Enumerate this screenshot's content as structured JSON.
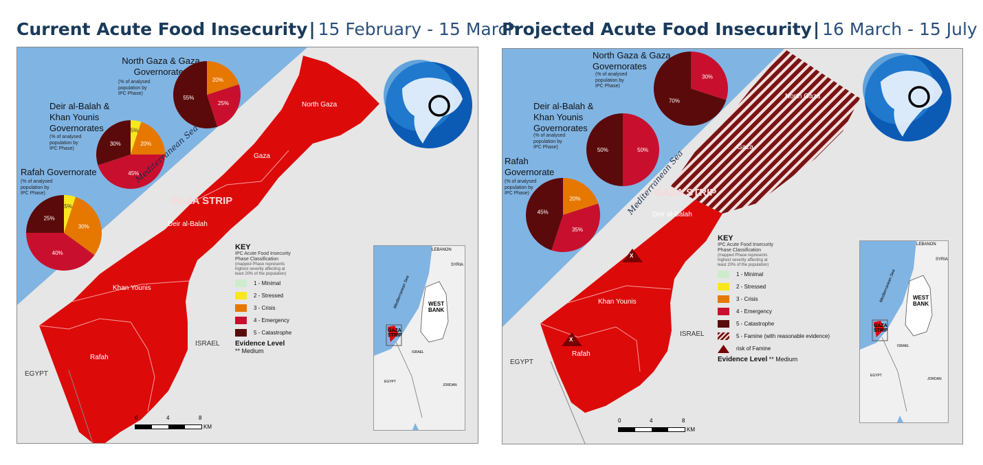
{
  "left": {
    "title_bold": "Current Acute Food Insecurity",
    "title_dates": "15 February - 15 March",
    "pies": [
      {
        "title": "North Gaza & Gaza\nGovernorates",
        "subtitle": "(% of analysed\npopulation by\nIPC Phase)",
        "slices": [
          {
            "phase": 3,
            "pct": 20,
            "label": "20%"
          },
          {
            "phase": 4,
            "pct": 25,
            "label": "25%"
          },
          {
            "phase": 5,
            "pct": 55,
            "label": "55%"
          }
        ]
      },
      {
        "title": "Deir al-Balah &\nKhan Younis\nGovernorates",
        "subtitle": "(% of analysed\npopulation by\nIPC Phase)",
        "slices": [
          {
            "phase": 2,
            "pct": 5,
            "label": "5%"
          },
          {
            "phase": 3,
            "pct": 20,
            "label": "20%"
          },
          {
            "phase": 4,
            "pct": 45,
            "label": "45%"
          },
          {
            "phase": 5,
            "pct": 30,
            "label": "30%"
          }
        ]
      },
      {
        "title": "Rafah  Governorate",
        "subtitle": "(% of analysed\npopulation by\nIPC Phase)",
        "slices": [
          {
            "phase": 2,
            "pct": 5,
            "label": "5%"
          },
          {
            "phase": 3,
            "pct": 30,
            "label": "30%"
          },
          {
            "phase": 4,
            "pct": 40,
            "label": "40%"
          },
          {
            "phase": 5,
            "pct": 25,
            "label": "25%"
          }
        ]
      }
    ],
    "places": {
      "north_gaza": "North Gaza",
      "gaza": "Gaza",
      "gaza_strip": "GAZA STRIP",
      "deir": "Deir al-Balah",
      "khan": "Khan Younis",
      "rafah": "Rafah",
      "israel": "ISRAEL",
      "egypt": "EGYPT",
      "sea": "Mediterranean Sea"
    },
    "key": {
      "title": "KEY",
      "subtitle": "IPC Acute Food Insecurity\nPhase Classification",
      "note": "(mapped Phase represents\nhighest severity affecting at\nleast 20% of the population)",
      "items": [
        {
          "label": "1 - Minimal",
          "color": "#cdeccc"
        },
        {
          "label": "2 - Stressed",
          "color": "#fae61e"
        },
        {
          "label": "3 - Crisis",
          "color": "#e67800"
        },
        {
          "label": "4 - Emergency",
          "color": "#c8102e"
        },
        {
          "label": "5 - Catastrophe",
          "color": "#5a0a0a"
        }
      ],
      "evidence_title": "Evidence Level",
      "evidence_value": "** Medium"
    },
    "scale": {
      "ticks": [
        "0",
        "4",
        "8"
      ],
      "unit": "KM"
    },
    "inset": {
      "lebanon": "LEBANON",
      "syria": "SYRIA",
      "sea": "Mediterranean Sea",
      "west_bank": "WEST\nBANK",
      "gaza_strip": "GAZA\nSTRIP",
      "israel": "ISRAEL",
      "egypt": "EGYPT",
      "jordan": "JORDAN"
    }
  },
  "right": {
    "title_bold": "Projected Acute Food Insecurity",
    "title_dates": "16 March - 15 July",
    "pies": [
      {
        "title": "North Gaza & Gaza\nGovernorates",
        "subtitle": "(% of analysed\npopulation by\nIPC Phase)",
        "slices": [
          {
            "phase": 4,
            "pct": 30,
            "label": "30%"
          },
          {
            "phase": 5,
            "pct": 70,
            "label": "70%"
          }
        ]
      },
      {
        "title": "Deir al-Balah &\nKhan Younis\nGovernorates",
        "subtitle": "(% of analysed\npopulation by\nIPC Phase)",
        "slices": [
          {
            "phase": 4,
            "pct": 50,
            "label": "50%"
          },
          {
            "phase": 5,
            "pct": 50,
            "label": "50%"
          }
        ]
      },
      {
        "title": "Rafah\nGovernorate",
        "subtitle": "(% of analysed\npopulation by\nIPC Phase)",
        "slices": [
          {
            "phase": 3,
            "pct": 20,
            "label": "20%"
          },
          {
            "phase": 4,
            "pct": 35,
            "label": "35%"
          },
          {
            "phase": 5,
            "pct": 45,
            "label": "45%"
          }
        ]
      }
    ],
    "places": {
      "north_gaza": "North Gaza",
      "gaza": "Gaza",
      "gaza_strip": "GAZA STRIP",
      "deir": "Deir al-Balah",
      "khan": "Khan Younis",
      "rafah": "Rafah",
      "israel": "ISRAEL",
      "egypt": "EGYPT",
      "sea": "Mediterranean Sea",
      "risk_mark": "X"
    },
    "key": {
      "title": "KEY",
      "subtitle": "IPC Acute Food Insecurity\nPhase Classification",
      "note": "(mapped Phase represents\nhighest severity affecting at\nleast 20% of the population)",
      "items": [
        {
          "label": "1 - Minimal",
          "color": "#cdeccc"
        },
        {
          "label": "2 - Stressed",
          "color": "#fae61e"
        },
        {
          "label": "3 - Crisis",
          "color": "#e67800"
        },
        {
          "label": "4 - Emergency",
          "color": "#c8102e"
        },
        {
          "label": "5 - Catastrophe",
          "color": "#5a0a0a"
        }
      ],
      "famine_label": "5 -  Famine (with reasonable evidence)",
      "risk_label": "risk of Famine",
      "evidence_title": "Evidence Level",
      "evidence_value": "** Medium"
    },
    "scale": {
      "ticks": [
        "0",
        "4",
        "8"
      ],
      "unit": "KM"
    },
    "inset": {
      "lebanon": "LEBANON",
      "syria": "SYRIA",
      "sea": "Mediterranean Sea",
      "west_bank": "WEST\nBANK",
      "gaza_strip": "GAZA\nSTRIP",
      "israel": "ISRAEL",
      "egypt": "EGYPT",
      "jordan": "JORDAN"
    }
  },
  "colors": {
    "sea": "#80b4e3",
    "land": "#e6e6e6",
    "phase2": "#fae61e",
    "phase3": "#e67800",
    "phase4": "#c8102e",
    "phase5": "#5a0a0a",
    "map_red": "#dd0a0a",
    "title": "#1a3a5a"
  }
}
